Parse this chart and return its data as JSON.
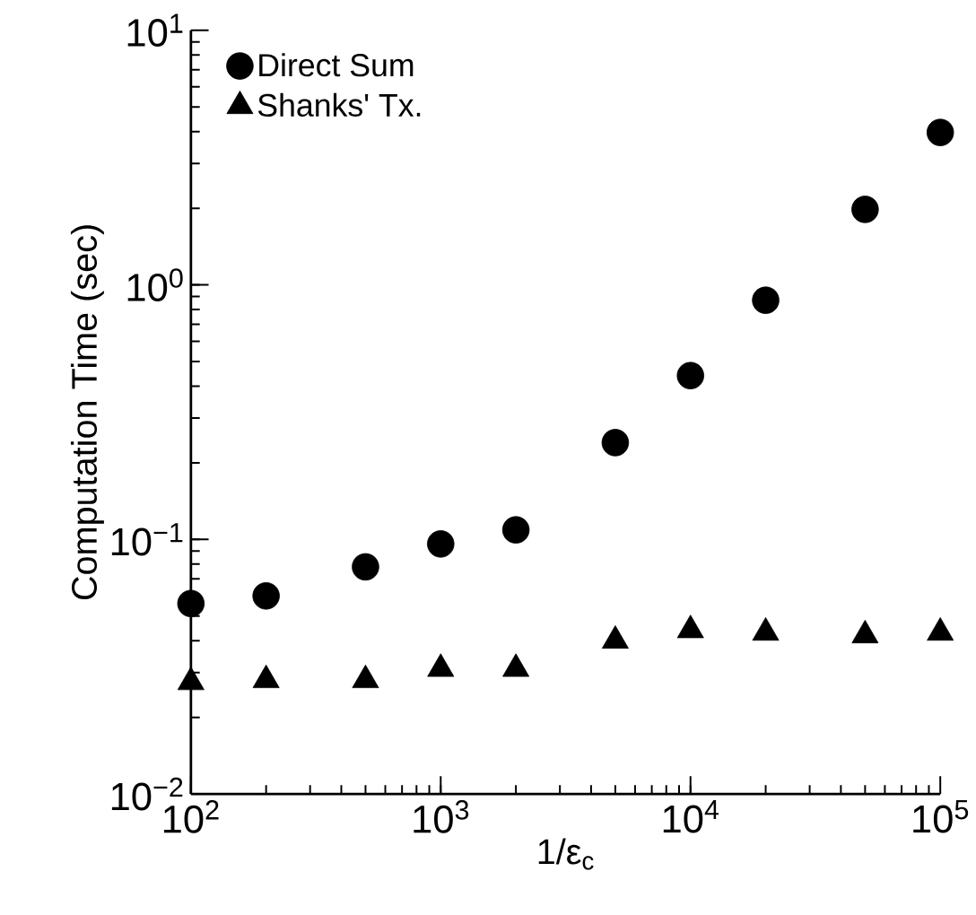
{
  "chart_data": {
    "type": "scatter",
    "xlabel": "1/ε$_{c}$",
    "ylabel": "Computation Time (sec)",
    "log": "xy",
    "legend": "top left",
    "grid": false,
    "x": [
      100,
      200,
      500,
      1000,
      2000,
      5000,
      10000,
      20000,
      50000,
      100000
    ],
    "xlim": [
      100,
      100000
    ],
    "ylim": [
      0.01,
      10
    ],
    "xticks": [
      {
        "value": 100,
        "label": "10$^{2}$"
      },
      {
        "value": 1000,
        "label": "10$^{3}$"
      },
      {
        "value": 10000,
        "label": "10$^{4}$"
      },
      {
        "value": 100000,
        "label": "10$^{5}$"
      }
    ],
    "yticks": [
      {
        "value": 0.01,
        "label": "10$^{−2}$"
      },
      {
        "value": 0.1,
        "label": "10$^{−1}$"
      },
      {
        "value": 1,
        "label": "10$^{0}$"
      },
      {
        "value": 10,
        "label": "10$^{1}$"
      }
    ],
    "series": [
      {
        "name": "Direct Sum",
        "color": "#000000",
        "marker": "circle",
        "values": [
          0.056,
          0.06,
          0.078,
          0.096,
          0.109,
          0.24,
          0.44,
          0.87,
          1.98,
          3.97
        ]
      },
      {
        "name": "Shanks' Tx.",
        "color": "#000000",
        "marker": "triangle",
        "values": [
          0.0275,
          0.028,
          0.028,
          0.031,
          0.031,
          0.04,
          0.044,
          0.043,
          0.042,
          0.043
        ]
      }
    ]
  }
}
